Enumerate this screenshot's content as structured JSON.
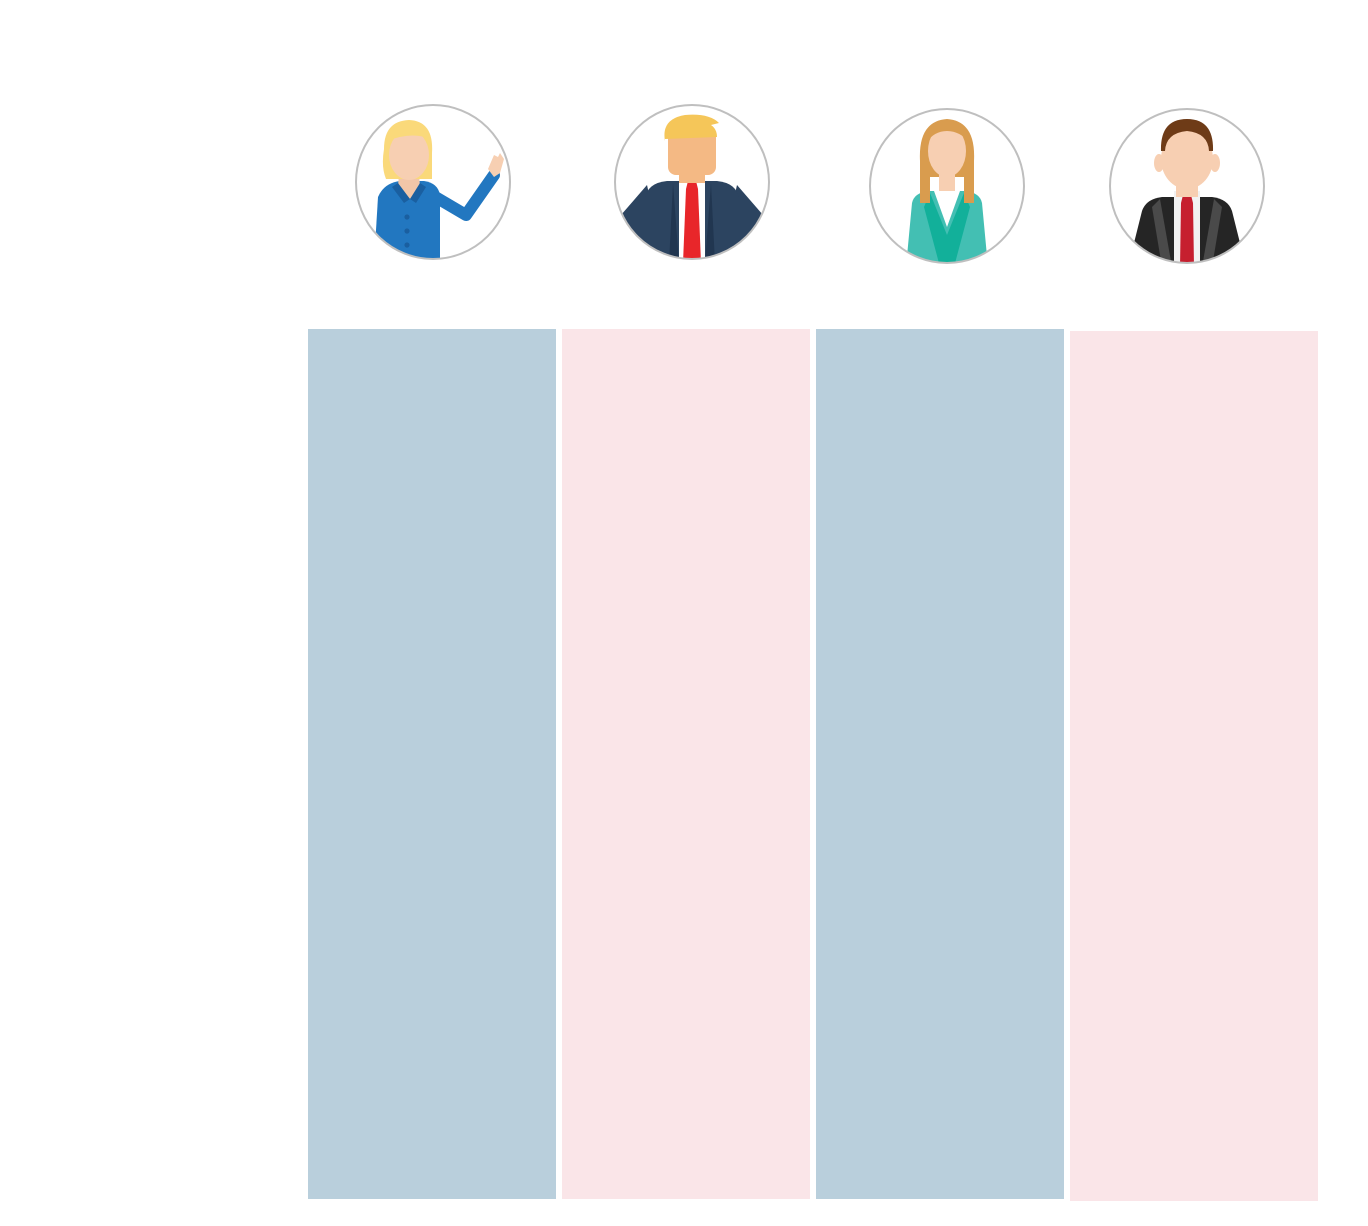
{
  "columns": [
    {
      "avatar_icon": "blonde-woman-blue-suit-waving-icon",
      "color": "#b9cfdc"
    },
    {
      "avatar_icon": "blond-man-navy-suit-red-tie-icon",
      "color": "#fae5e8"
    },
    {
      "avatar_icon": "woman-teal-jacket-icon",
      "color": "#b9cfdc"
    },
    {
      "avatar_icon": "man-black-suit-red-tie-icon",
      "color": "#fae5e8"
    }
  ]
}
